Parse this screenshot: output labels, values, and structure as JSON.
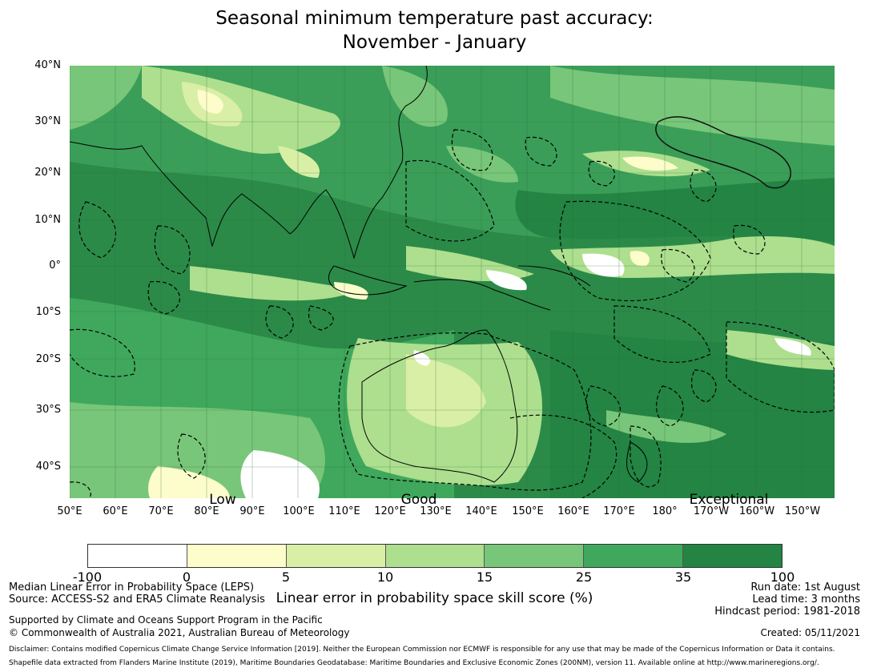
{
  "title": {
    "line1": "Seasonal minimum temperature past accuracy:",
    "line2": "November - January"
  },
  "map": {
    "lat_labels": [
      "40°N",
      "30°N",
      "20°N",
      "10°N",
      "0°",
      "10°S",
      "20°S",
      "30°S",
      "40°S"
    ],
    "lon_labels": [
      "50°E",
      "60°E",
      "70°E",
      "80°E",
      "90°E",
      "100°E",
      "110°E",
      "120°E",
      "130°E",
      "140°E",
      "150°E",
      "160°E",
      "170°E",
      "180°",
      "170°W",
      "160°W",
      "150°W"
    ],
    "skill_labels": {
      "low": "Low",
      "good": "Good",
      "exceptional": "Exceptional"
    },
    "base_color": "#3a9e58"
  },
  "colorbar": {
    "colors": [
      "#ffffff",
      "#fdfccb",
      "#d9efa5",
      "#addf8e",
      "#78c679",
      "#3fa85c",
      "#238443"
    ],
    "ticks": [
      "-100",
      "0",
      "5",
      "10",
      "15",
      "25",
      "35",
      "100"
    ],
    "label": "Linear error in probability space skill score (%)"
  },
  "notes": {
    "metric": "Median Linear Error in Probability Space (LEPS)",
    "source": "Source: ACCESS-S2 and ERA5 Climate Reanalysis",
    "support": "Supported by Climate and Oceans Support Program in the Pacific",
    "copyright": "© Commonwealth of Australia 2021, Australian Bureau of Meteorology",
    "run_date": "Run date: 1st August",
    "lead_time": "Lead time: 3 months",
    "hindcast": "Hindcast period: 1981-2018",
    "created": "Created: 05/11/2021",
    "disclaimer": "Disclaimer: Contains modified Copernicus Climate Change Service Information [2019]. Neither the European Commission nor ECMWF is responsible for any use that may be made of the Copernicus Information or Data it contains.",
    "shapefile": "Shapefile data extracted from Flanders Marine Institute (2019), Maritime Boundaries Geodatabase: Maritime Boundaries and Exclusive Economic Zones (200NM), version 11. Available online at http://www.marineregions.org/."
  }
}
